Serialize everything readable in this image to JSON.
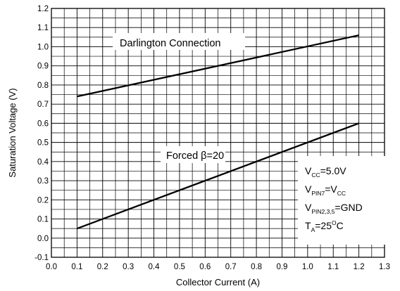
{
  "chart_data": {
    "type": "line",
    "xlabel": "Collector Current (A)",
    "ylabel": "Saturation Voltage (V)",
    "xlim": [
      0.0,
      1.3
    ],
    "ylim": [
      -0.1,
      1.2
    ],
    "x_ticks": [
      "0.0",
      "0.1",
      "0.2",
      "0.3",
      "0.4",
      "0.5",
      "0.6",
      "0.7",
      "0.8",
      "0.9",
      "1.0",
      "1.1",
      "1.2",
      "1.3"
    ],
    "y_ticks": [
      "-0.1",
      "0.0",
      "0.1",
      "0.2",
      "0.3",
      "0.4",
      "0.5",
      "0.6",
      "0.7",
      "0.8",
      "0.9",
      "1.0",
      "1.1",
      "1.2"
    ],
    "grid": true,
    "series": [
      {
        "name": "Darlington Connection",
        "x": [
          0.1,
          1.2
        ],
        "y": [
          0.74,
          1.06
        ]
      },
      {
        "name": "Forced β=20",
        "x": [
          0.1,
          1.2
        ],
        "y": [
          0.05,
          0.6
        ]
      }
    ],
    "annotations": {
      "darlington": "Darlington Connection",
      "forced": "Forced β=20"
    },
    "conditions": {
      "vcc_main": "V",
      "vcc_sub": "CC",
      "vcc_val": "=5.0V",
      "pin7_main": "V",
      "pin7_sub": "PIN7",
      "pin7_eq": "=V",
      "pin7_sub2": "CC",
      "pin235_main": "V",
      "pin235_sub": "PIN2,3,5",
      "pin235_val": "=GND",
      "ta_main": "T",
      "ta_sub": "A",
      "ta_val": "=25",
      "ta_sup": "O",
      "ta_unit": "C"
    }
  }
}
